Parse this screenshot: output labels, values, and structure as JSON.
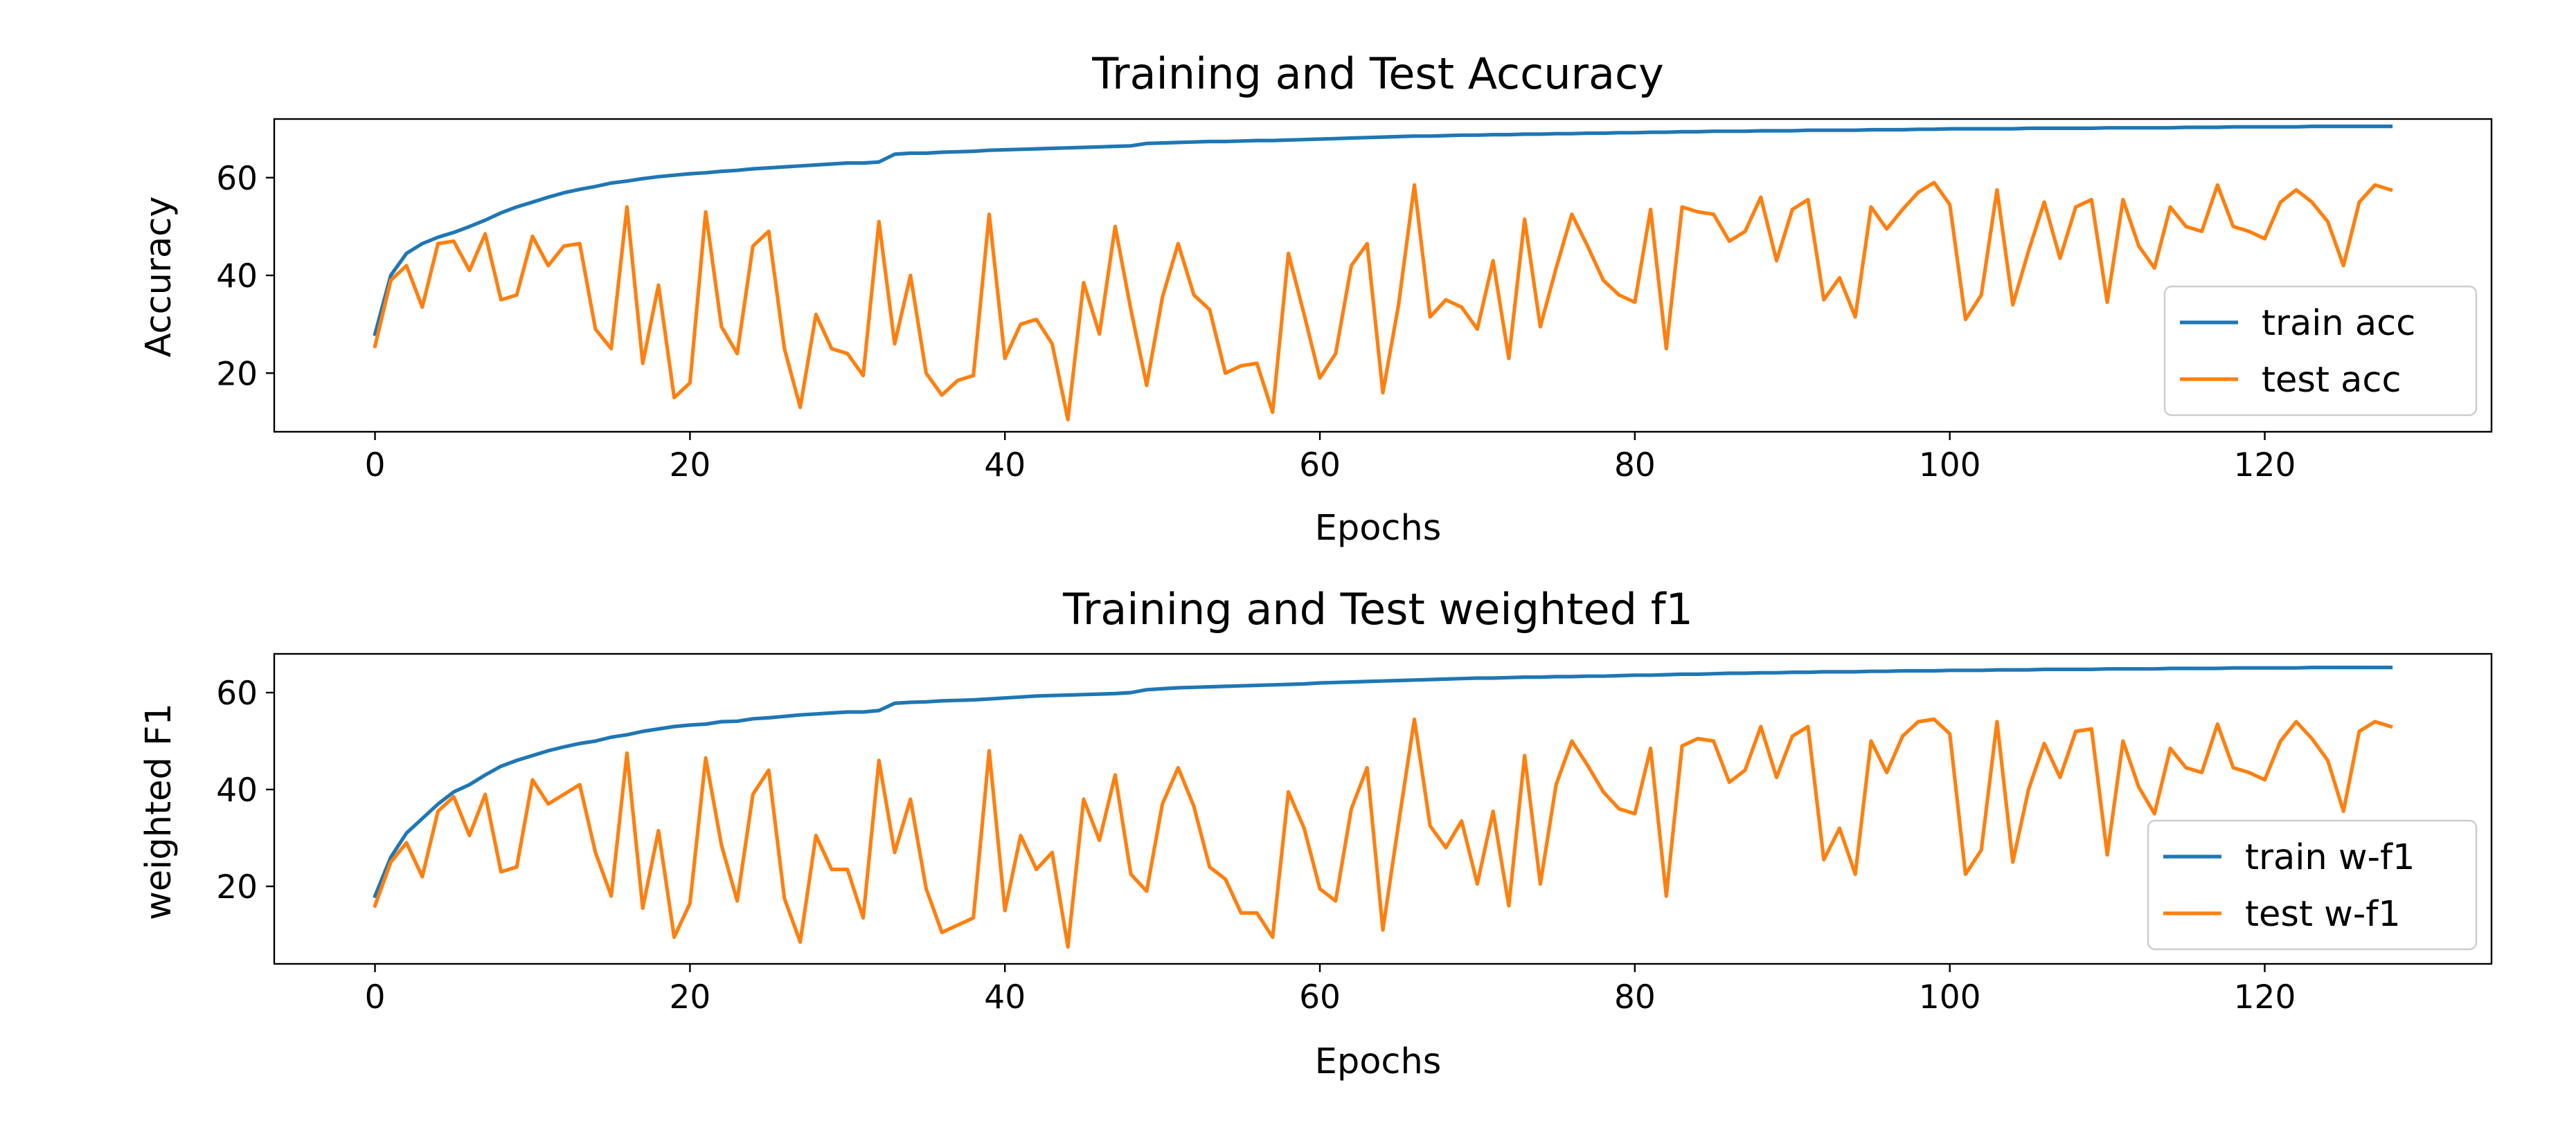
{
  "chart_data": [
    {
      "type": "line",
      "title": "Training and Test Accuracy",
      "xlabel": "Epochs",
      "ylabel": "Accuracy",
      "xlim": [
        -6.4,
        134.4
      ],
      "ylim": [
        8,
        72
      ],
      "xticks": [
        0,
        20,
        40,
        60,
        80,
        100,
        120
      ],
      "yticks": [
        20,
        40,
        60
      ],
      "grid": false,
      "legend_position": "lower-right",
      "series": [
        {
          "name": "train acc",
          "color": "#1f77b4",
          "values": [
            28.0,
            40.0,
            44.5,
            46.5,
            47.8,
            48.8,
            50.0,
            51.3,
            52.8,
            54.0,
            55.0,
            56.0,
            56.9,
            57.6,
            58.2,
            58.9,
            59.3,
            59.8,
            60.2,
            60.5,
            60.8,
            61.0,
            61.3,
            61.5,
            61.8,
            62.0,
            62.2,
            62.4,
            62.6,
            62.8,
            63.0,
            63.0,
            63.2,
            64.8,
            65.0,
            65.0,
            65.2,
            65.3,
            65.4,
            65.6,
            65.7,
            65.8,
            65.9,
            66.0,
            66.1,
            66.2,
            66.3,
            66.4,
            66.5,
            67.0,
            67.1,
            67.2,
            67.3,
            67.4,
            67.4,
            67.5,
            67.6,
            67.6,
            67.7,
            67.8,
            67.9,
            68.0,
            68.1,
            68.2,
            68.3,
            68.4,
            68.5,
            68.5,
            68.6,
            68.7,
            68.7,
            68.8,
            68.8,
            68.9,
            68.9,
            69.0,
            69.0,
            69.1,
            69.1,
            69.2,
            69.2,
            69.3,
            69.3,
            69.4,
            69.4,
            69.5,
            69.5,
            69.5,
            69.6,
            69.6,
            69.6,
            69.7,
            69.7,
            69.7,
            69.7,
            69.8,
            69.8,
            69.8,
            69.9,
            69.9,
            70.0,
            70.0,
            70.0,
            70.0,
            70.0,
            70.1,
            70.1,
            70.1,
            70.1,
            70.1,
            70.2,
            70.2,
            70.2,
            70.2,
            70.2,
            70.3,
            70.3,
            70.3,
            70.4,
            70.4,
            70.4,
            70.4,
            70.4,
            70.5,
            70.5,
            70.5,
            70.5,
            70.5,
            70.5
          ]
        },
        {
          "name": "test acc",
          "color": "#ff7f0e",
          "values": [
            25.5,
            39.0,
            42.0,
            33.5,
            46.5,
            47.0,
            41.0,
            48.5,
            35.0,
            36.0,
            48.0,
            42.0,
            46.0,
            46.5,
            29.0,
            25.0,
            54.0,
            22.0,
            38.0,
            15.0,
            18.0,
            53.0,
            29.5,
            24.0,
            46.0,
            49.0,
            25.0,
            13.0,
            32.0,
            25.0,
            24.0,
            19.5,
            51.0,
            26.0,
            40.0,
            20.0,
            15.5,
            18.5,
            19.5,
            52.5,
            23.0,
            30.0,
            31.0,
            26.0,
            10.5,
            38.5,
            28.0,
            50.0,
            33.0,
            17.5,
            35.5,
            46.5,
            36.0,
            33.0,
            20.0,
            21.5,
            22.0,
            12.0,
            44.5,
            32.0,
            19.0,
            24.0,
            42.0,
            46.5,
            16.0,
            34.0,
            58.5,
            31.5,
            35.0,
            33.5,
            29.0,
            43.0,
            23.0,
            51.5,
            29.5,
            41.5,
            52.5,
            46.0,
            39.0,
            36.0,
            34.5,
            53.5,
            25.0,
            54.0,
            53.0,
            52.5,
            47.0,
            49.0,
            56.0,
            43.0,
            53.5,
            55.5,
            35.0,
            39.5,
            31.5,
            54.0,
            49.5,
            53.5,
            57.0,
            59.0,
            54.5,
            31.0,
            36.0,
            57.5,
            34.0,
            45.0,
            55.0,
            43.5,
            54.0,
            55.5,
            34.5,
            55.5,
            46.0,
            41.5,
            54.0,
            50.0,
            49.0,
            58.5,
            50.0,
            49.0,
            47.5,
            55.0,
            57.5,
            55.0,
            51.0,
            42.0,
            55.0,
            58.5,
            57.5
          ]
        }
      ]
    },
    {
      "type": "line",
      "title": "Training and Test weighted f1",
      "xlabel": "Epochs",
      "ylabel": "weighted F1",
      "xlim": [
        -6.4,
        134.4
      ],
      "ylim": [
        4,
        68
      ],
      "xticks": [
        0,
        20,
        40,
        60,
        80,
        100,
        120
      ],
      "yticks": [
        20,
        40,
        60
      ],
      "grid": false,
      "legend_position": "lower-right",
      "series": [
        {
          "name": "train w-f1",
          "color": "#1f77b4",
          "values": [
            18.0,
            26.0,
            31.0,
            34.0,
            37.0,
            39.5,
            41.0,
            43.0,
            44.8,
            46.0,
            47.0,
            48.0,
            48.8,
            49.5,
            50.0,
            50.8,
            51.3,
            52.0,
            52.5,
            53.0,
            53.3,
            53.5,
            54.0,
            54.1,
            54.6,
            54.8,
            55.1,
            55.4,
            55.6,
            55.8,
            56.0,
            56.0,
            56.3,
            57.8,
            58.0,
            58.1,
            58.3,
            58.4,
            58.5,
            58.7,
            58.9,
            59.1,
            59.3,
            59.4,
            59.5,
            59.6,
            59.7,
            59.8,
            60.0,
            60.6,
            60.8,
            61.0,
            61.1,
            61.2,
            61.3,
            61.4,
            61.5,
            61.6,
            61.7,
            61.8,
            62.0,
            62.1,
            62.2,
            62.3,
            62.4,
            62.5,
            62.6,
            62.7,
            62.8,
            62.9,
            63.0,
            63.0,
            63.1,
            63.2,
            63.2,
            63.3,
            63.3,
            63.4,
            63.4,
            63.5,
            63.6,
            63.6,
            63.7,
            63.8,
            63.8,
            63.9,
            64.0,
            64.0,
            64.1,
            64.1,
            64.2,
            64.2,
            64.3,
            64.3,
            64.3,
            64.4,
            64.4,
            64.5,
            64.5,
            64.5,
            64.6,
            64.6,
            64.6,
            64.7,
            64.7,
            64.7,
            64.8,
            64.8,
            64.8,
            64.8,
            64.9,
            64.9,
            64.9,
            64.9,
            65.0,
            65.0,
            65.0,
            65.0,
            65.1,
            65.1,
            65.1,
            65.1,
            65.1,
            65.2,
            65.2,
            65.2,
            65.2,
            65.2,
            65.2
          ]
        },
        {
          "name": "test w-f1",
          "color": "#ff7f0e",
          "values": [
            16.0,
            25.0,
            29.0,
            22.0,
            35.5,
            38.5,
            30.5,
            39.0,
            23.0,
            24.0,
            42.0,
            37.0,
            39.0,
            41.0,
            27.0,
            18.0,
            47.5,
            15.5,
            31.5,
            9.5,
            16.5,
            46.5,
            28.5,
            17.0,
            39.0,
            44.0,
            17.5,
            8.5,
            30.5,
            23.5,
            23.5,
            13.5,
            46.0,
            27.0,
            38.0,
            19.5,
            10.5,
            12.0,
            13.5,
            48.0,
            15.0,
            30.5,
            23.5,
            27.0,
            7.5,
            38.0,
            29.5,
            43.0,
            22.5,
            19.0,
            37.0,
            44.5,
            36.5,
            24.0,
            21.5,
            14.5,
            14.5,
            9.5,
            39.5,
            32.0,
            19.5,
            17.0,
            36.0,
            44.5,
            11.0,
            33.0,
            54.5,
            32.5,
            28.0,
            33.5,
            20.5,
            35.5,
            16.0,
            47.0,
            20.5,
            41.0,
            50.0,
            45.0,
            39.5,
            36.0,
            35.0,
            48.5,
            18.0,
            49.0,
            50.5,
            50.0,
            41.5,
            44.0,
            53.0,
            42.5,
            51.0,
            53.0,
            25.5,
            32.0,
            22.5,
            50.0,
            43.5,
            51.0,
            54.0,
            54.5,
            51.5,
            22.5,
            27.5,
            54.0,
            25.0,
            40.0,
            49.5,
            42.5,
            52.0,
            52.5,
            26.5,
            50.0,
            40.5,
            35.0,
            48.5,
            44.5,
            43.5,
            53.5,
            44.5,
            43.5,
            42.0,
            50.0,
            54.0,
            50.5,
            46.0,
            35.5,
            52.0,
            54.0,
            53.0
          ]
        }
      ]
    }
  ]
}
